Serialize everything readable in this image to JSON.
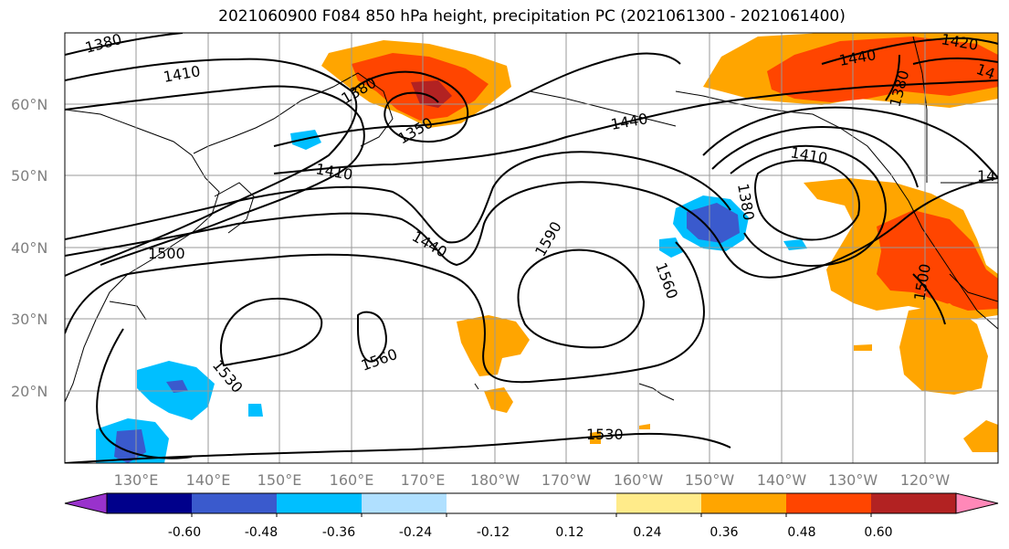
{
  "title": "2021060900 F084 850 hPa height, precipitation PC (2021061300 - 2021061400)",
  "lat_labels": [
    "60°N",
    "50°N",
    "40°N",
    "30°N",
    "20°N"
  ],
  "lon_labels": [
    "130°E",
    "140°E",
    "150°E",
    "160°E",
    "170°E",
    "180°W",
    "170°W",
    "160°W",
    "150°W",
    "140°W",
    "130°W",
    "120°W"
  ],
  "colorbar": {
    "colors": [
      "#9932cc",
      "#00008b",
      "#3a5acd",
      "#00bfff",
      "#b0e0ff",
      "#ffffff",
      "#ffffff",
      "#ffeb8a",
      "#ffa500",
      "#ff4500",
      "#b22222",
      "#ff88b8"
    ],
    "tick_labels": [
      "-0.60",
      "-0.48",
      "-0.36",
      "-0.24",
      "-0.12",
      "0.12",
      "0.24",
      "0.36",
      "0.48",
      "0.60"
    ]
  },
  "contour_labels": [
    "1380",
    "1410",
    "1380",
    "1350",
    "1440",
    "1410",
    "1380",
    "1410",
    "1500",
    "1440",
    "1590",
    "1560",
    "1530",
    "1560",
    "1530",
    "1440",
    "1420",
    "1380",
    "14",
    "14",
    "1500"
  ]
}
